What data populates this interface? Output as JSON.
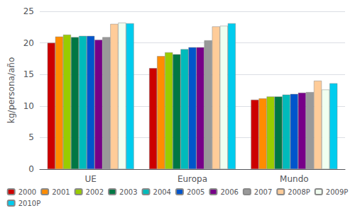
{
  "chart_data": {
    "type": "bar",
    "categories": [
      "UE",
      "Europa",
      "Mundo"
    ],
    "series": [
      {
        "name": "2000",
        "color": "#cc0000",
        "values": [
          20.0,
          16.0,
          11.0
        ]
      },
      {
        "name": "2001",
        "color": "#ff8c00",
        "values": [
          21.0,
          17.9,
          11.2
        ]
      },
      {
        "name": "2002",
        "color": "#99cc00",
        "values": [
          21.3,
          18.5,
          11.5
        ]
      },
      {
        "name": "2003",
        "color": "#007744",
        "values": [
          20.9,
          18.2,
          11.5
        ]
      },
      {
        "name": "2004",
        "color": "#00bbbb",
        "values": [
          21.1,
          19.0,
          11.8
        ]
      },
      {
        "name": "2005",
        "color": "#0055cc",
        "values": [
          21.1,
          19.3,
          11.9
        ]
      },
      {
        "name": "2006",
        "color": "#770088",
        "values": [
          20.5,
          19.3,
          12.1
        ]
      },
      {
        "name": "2007",
        "color": "#999999",
        "values": [
          20.9,
          20.4,
          12.2
        ]
      },
      {
        "name": "2008P",
        "color": "#ffcc99",
        "values": [
          23.0,
          22.6,
          14.0
        ]
      },
      {
        "name": "2009P",
        "color": "#f0fff0",
        "values": [
          23.2,
          22.7,
          12.6
        ]
      },
      {
        "name": "2010P",
        "color": "#00ccee",
        "values": [
          23.1,
          23.1,
          13.6
        ]
      }
    ],
    "ylabel": "kg/persona/año",
    "ylim": [
      0,
      25
    ],
    "yticks": [
      0,
      5,
      10,
      15,
      20,
      25
    ],
    "grid": true,
    "legend": "bottom"
  }
}
